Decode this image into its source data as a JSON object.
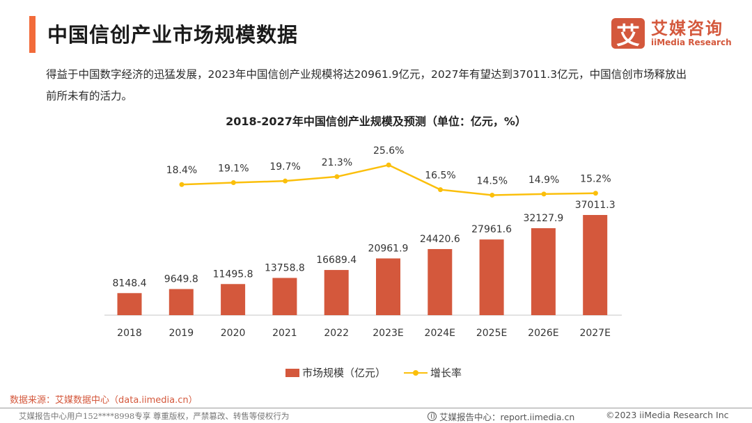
{
  "header": {
    "title": "中国信创产业市场规模数据",
    "logo_mark": "艾",
    "logo_cn": "艾媒咨询",
    "logo_en": "iiMedia Research"
  },
  "intro_text": "得益于中国数字经济的迅猛发展，2023年中国信创产业规模将达20961.9亿元，2027年有望达到37011.3亿元，中国信创市场释放出前所未有的活力。",
  "chart_data": {
    "type": "bar",
    "title": "2018-2027年中国信创产业规模及预测（单位：亿元，%）",
    "categories": [
      "2018",
      "2019",
      "2020",
      "2021",
      "2022",
      "2023E",
      "2024E",
      "2025E",
      "2026E",
      "2027E"
    ],
    "series": [
      {
        "name": "市场规模（亿元）",
        "type": "bar",
        "color": "#d4583c",
        "values": [
          8148.4,
          9649.8,
          11495.8,
          13758.8,
          16689.4,
          20961.9,
          24420.6,
          27961.6,
          32127.9,
          37011.3
        ],
        "labels": [
          "8148.4",
          "9649.8",
          "11495.8",
          "13758.8",
          "16689.4",
          "20961.9",
          "24420.6",
          "27961.6",
          "32127.9",
          "37011.3"
        ]
      },
      {
        "name": "增长率",
        "type": "line",
        "color": "#fbbf0b",
        "values": [
          18.4,
          19.1,
          19.7,
          21.3,
          25.6,
          16.5,
          14.5,
          14.9,
          15.2
        ],
        "categories": [
          "2019",
          "2020",
          "2021",
          "2022",
          "2023E",
          "2024E",
          "2025E",
          "2026E",
          "2027E"
        ],
        "labels": [
          "18.4%",
          "19.1%",
          "19.7%",
          "21.3%",
          "25.6%",
          "16.5%",
          "14.5%",
          "14.9%",
          "15.2%"
        ]
      }
    ],
    "xlabel": "",
    "ylabel": "",
    "grid": false,
    "legend": "bottom-center"
  },
  "legend": {
    "bar_label": "市场规模（亿元）",
    "line_label": "增长率"
  },
  "footer": {
    "source": "数据来源：艾媒数据中心（data.iimedia.cn）",
    "user_notice": "艾媒报告中心用户152****8998专享 尊重版权，严禁篡改、转售等侵权行为",
    "report_center": "艾媒报告中心：report.iimedia.cn",
    "copyright": "©2023  iiMedia Research  Inc"
  }
}
